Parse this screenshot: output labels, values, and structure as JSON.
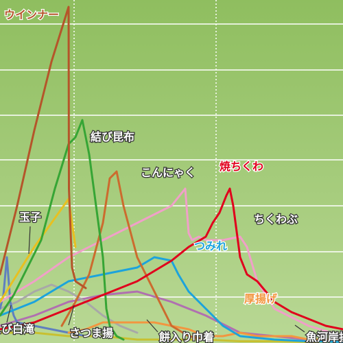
{
  "chart_data": {
    "type": "line",
    "title": "",
    "xlabel": "",
    "ylabel": "",
    "xlim": [
      0,
      100
    ],
    "ylim": [
      0,
      100
    ],
    "grid": true,
    "legend": "inline",
    "colors": {
      "bg_top": "#8fbe5f",
      "bg_bottom": "#b9d895",
      "grid": "#ffffff"
    },
    "series": [
      {
        "name": "ウインナー",
        "color": "#b5552a",
        "label_color": "#b5552a",
        "x": [
          0,
          5,
          10,
          15,
          20,
          20.1,
          21,
          22,
          25
        ],
        "y": [
          20,
          40,
          62,
          82,
          98,
          45,
          22,
          18,
          16
        ]
      },
      {
        "name": "結び昆布",
        "color": "#36a535",
        "label_color": "#ffffff",
        "x": [
          0,
          4,
          8,
          12,
          16,
          20,
          22,
          24,
          25,
          26,
          28,
          30,
          31,
          32,
          34,
          36
        ],
        "y": [
          8,
          14,
          22,
          30,
          45,
          58,
          60,
          65,
          60,
          55,
          40,
          25,
          10,
          5,
          2,
          1
        ]
      },
      {
        "name": "玉子",
        "color": "#e8c020",
        "label_color": "#ffffff",
        "x": [
          0,
          5,
          10,
          15,
          20,
          21,
          22
        ],
        "y": [
          12,
          20,
          28,
          35,
          42,
          35,
          28
        ]
      },
      {
        "name": "こんにゃく",
        "color": "#cc6b2e",
        "label_color": "#ffffff",
        "x": [
          18,
          22,
          26,
          30,
          32,
          34,
          36,
          40,
          45,
          50,
          55,
          60
        ],
        "y": [
          5,
          12,
          20,
          35,
          48,
          50,
          40,
          25,
          15,
          5,
          2,
          1
        ]
      },
      {
        "name": "焼ちくわ",
        "color": "#e0001c",
        "label_color": "#e0001c",
        "x": [
          0,
          10,
          20,
          30,
          40,
          50,
          55,
          60,
          62,
          64,
          66,
          67,
          68,
          70,
          72,
          75,
          80,
          85,
          90,
          95,
          100
        ],
        "y": [
          4,
          6,
          10,
          14,
          18,
          24,
          28,
          31,
          35,
          38,
          43,
          45,
          40,
          25,
          20,
          18,
          12,
          9,
          7,
          5,
          4
        ]
      },
      {
        "name": "ちくわぶ",
        "color": "#f0a0c8",
        "label_color": "#ffffff",
        "x": [
          0,
          10,
          20,
          30,
          40,
          50,
          54,
          55,
          56,
          58,
          60,
          65,
          70,
          72,
          75,
          80,
          90,
          100
        ],
        "y": [
          12,
          18,
          25,
          30,
          35,
          40,
          45,
          32,
          30,
          31,
          30,
          30,
          31,
          28,
          18,
          10,
          5,
          2
        ]
      },
      {
        "name": "つみれ",
        "color": "#1ca3dc",
        "label_color": "#1ca3dc",
        "x": [
          0,
          10,
          20,
          30,
          40,
          45,
          50,
          52,
          55,
          60,
          65,
          70,
          80,
          90,
          100
        ],
        "y": [
          8,
          12,
          18,
          20,
          22,
          25,
          24,
          20,
          15,
          10,
          5,
          2,
          1,
          0.5,
          0.3
        ]
      },
      {
        "name": "厚揚げ",
        "color": "#f29640",
        "label_color": "#f29640",
        "x": [
          20,
          25,
          30,
          35,
          40,
          45,
          50,
          55,
          60,
          65,
          70,
          75,
          80,
          85,
          90,
          95,
          100
        ],
        "y": [
          3,
          4,
          6,
          6,
          6,
          6,
          5,
          4,
          2,
          2,
          3,
          2,
          2,
          2,
          1,
          1,
          1
        ]
      },
      {
        "name": "えび白滝",
        "color": "#5f7fbf",
        "label_color": "#ffffff",
        "x": [
          0,
          1,
          2,
          3,
          4,
          5,
          10,
          15,
          20,
          25
        ],
        "y": [
          10,
          14,
          25,
          12,
          8,
          6,
          5,
          4,
          3,
          2
        ]
      },
      {
        "name": "さつま揚",
        "color": "#a8a8a8",
        "label_color": "#ffffff",
        "x": [
          0,
          5,
          10,
          15,
          20,
          25,
          30,
          35,
          40
        ],
        "y": [
          10,
          12,
          15,
          17,
          15,
          12,
          8,
          5,
          3
        ]
      },
      {
        "name": "餅入り巾着",
        "color": "#c8c030",
        "label_color": "#ffffff",
        "x": [
          0,
          10,
          20,
          30,
          40,
          50,
          60,
          70,
          80,
          90,
          100
        ],
        "y": [
          3,
          3,
          2,
          2,
          1,
          1,
          1,
          0.5,
          0.5,
          0.3,
          0.2
        ]
      },
      {
        "name": "魚河岸揚",
        "color": "#b070b0",
        "label_color": "#ffffff",
        "x": [
          0,
          10,
          20,
          30,
          40,
          50,
          60,
          70,
          80,
          90
        ],
        "y": [
          5,
          8,
          12,
          14,
          15,
          12,
          8,
          3,
          2,
          1
        ]
      }
    ]
  }
}
